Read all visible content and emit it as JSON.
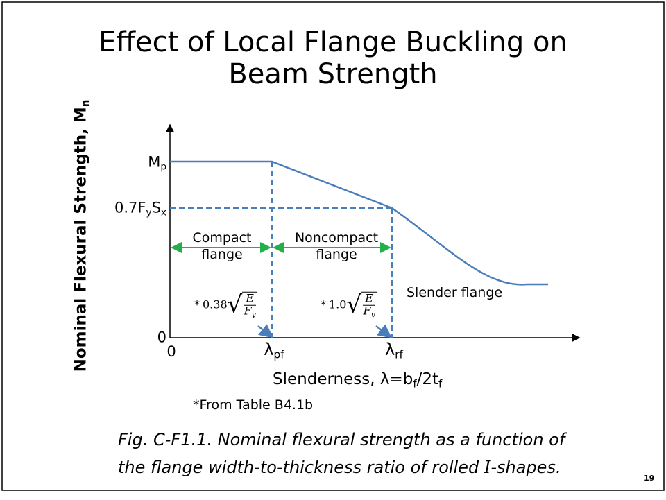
{
  "title": "Effect of Local Flange Buckling on Beam Strength",
  "y_axis_label": [
    "Nominal Flexural Strength, M",
    "n"
  ],
  "x_axis_label": [
    "Slenderness, λ=b",
    "f",
    "/2t",
    "f"
  ],
  "y_levels": {
    "top": [
      "M",
      "p"
    ],
    "mid": [
      "0.7F",
      "y",
      "S",
      "x"
    ],
    "origin": "0"
  },
  "x_points": {
    "origin": "0",
    "pf": [
      "λ",
      "pf"
    ],
    "rf": [
      "λ",
      "rf"
    ]
  },
  "regions": [
    "Compact flange",
    "Noncompact flange",
    "Slender flange"
  ],
  "formulas": [
    {
      "mark": "*",
      "coef": "0.38",
      "num": "E",
      "den": [
        "F",
        "y"
      ]
    },
    {
      "mark": "*",
      "coef": "1.0",
      "num": "E",
      "den": [
        "F",
        "y"
      ]
    }
  ],
  "footnote": "*From Table B4.1b",
  "caption": {
    "line1": "Fig. C-F1.1.  Nominal flexural strength as a function of",
    "line2": [
      "the flange width-to-thickness ratio of rolled ",
      "I",
      "-shapes."
    ]
  },
  "page_number": "19"
}
